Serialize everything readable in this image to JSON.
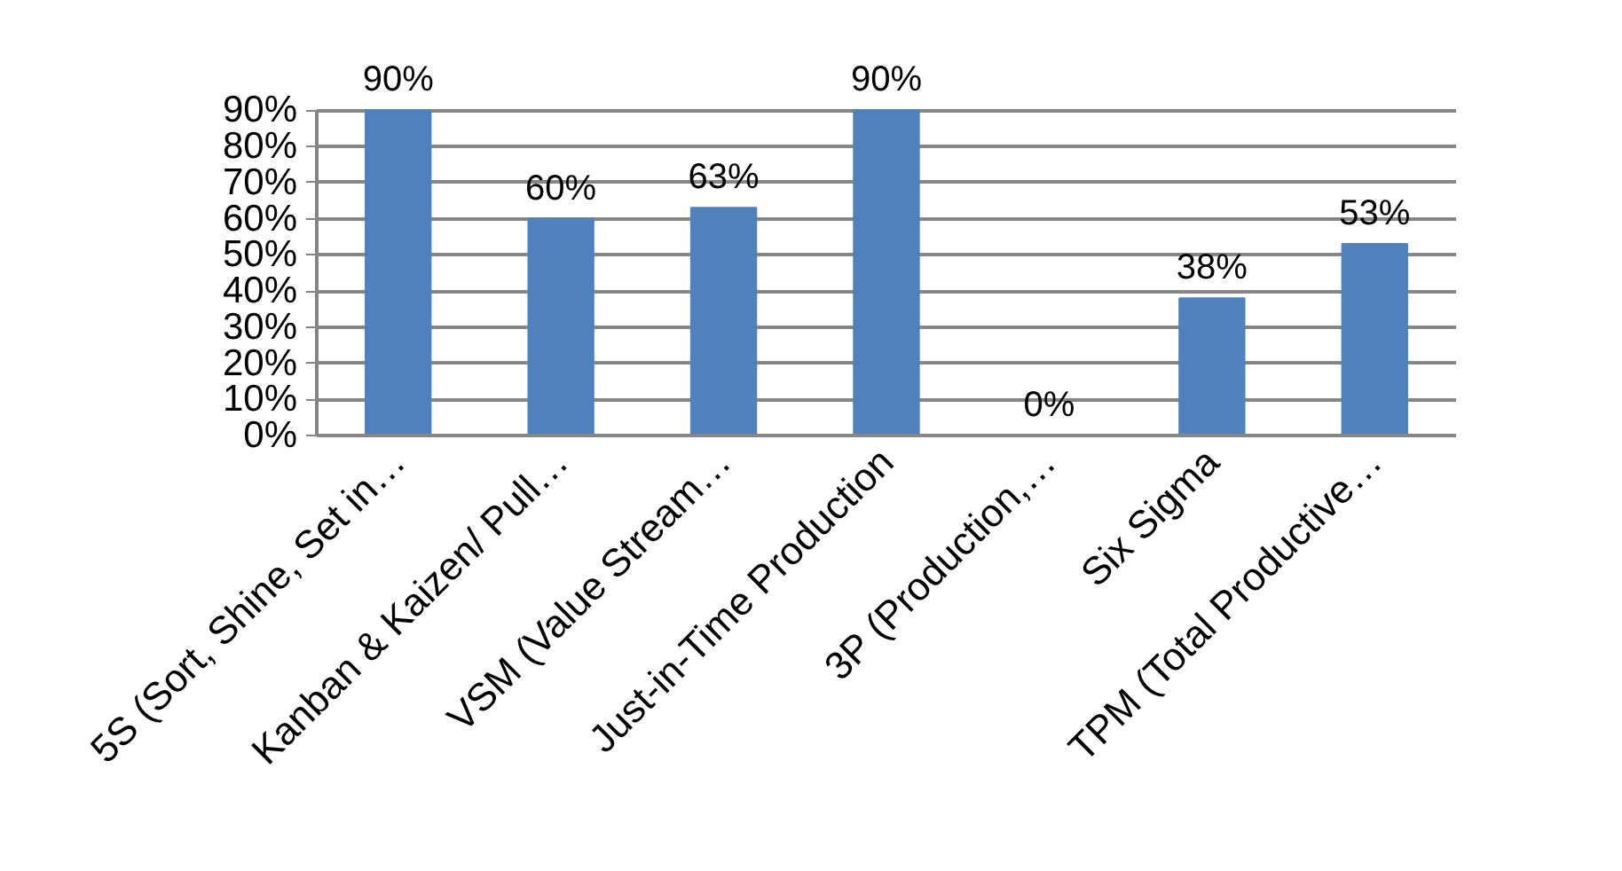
{
  "chart_data": {
    "type": "bar",
    "categories": [
      "5S (Sort, Shine, Set in…",
      "Kanban & Kaizen/ Pull…",
      "VSM (Value Stream…",
      "Just-in-Time Production",
      "3P (Production,…",
      "Six Sigma",
      "TPM (Total Productive…"
    ],
    "values": [
      90,
      60,
      63,
      90,
      0,
      38,
      53
    ],
    "value_labels": [
      "90%",
      "60%",
      "63%",
      "90%",
      "0%",
      "38%",
      "53%"
    ],
    "color": "#4f81bd",
    "ylim": [
      0,
      90
    ],
    "yticks": [
      {
        "value": 0,
        "label": "0%"
      },
      {
        "value": 10,
        "label": "10%"
      },
      {
        "value": 20,
        "label": "20%"
      },
      {
        "value": 30,
        "label": "30%"
      },
      {
        "value": 40,
        "label": "40%"
      },
      {
        "value": 50,
        "label": "50%"
      },
      {
        "value": 60,
        "label": "60%"
      },
      {
        "value": 70,
        "label": "70%"
      },
      {
        "value": 80,
        "label": "80%"
      },
      {
        "value": 90,
        "label": "90%"
      }
    ],
    "grid": "y"
  }
}
